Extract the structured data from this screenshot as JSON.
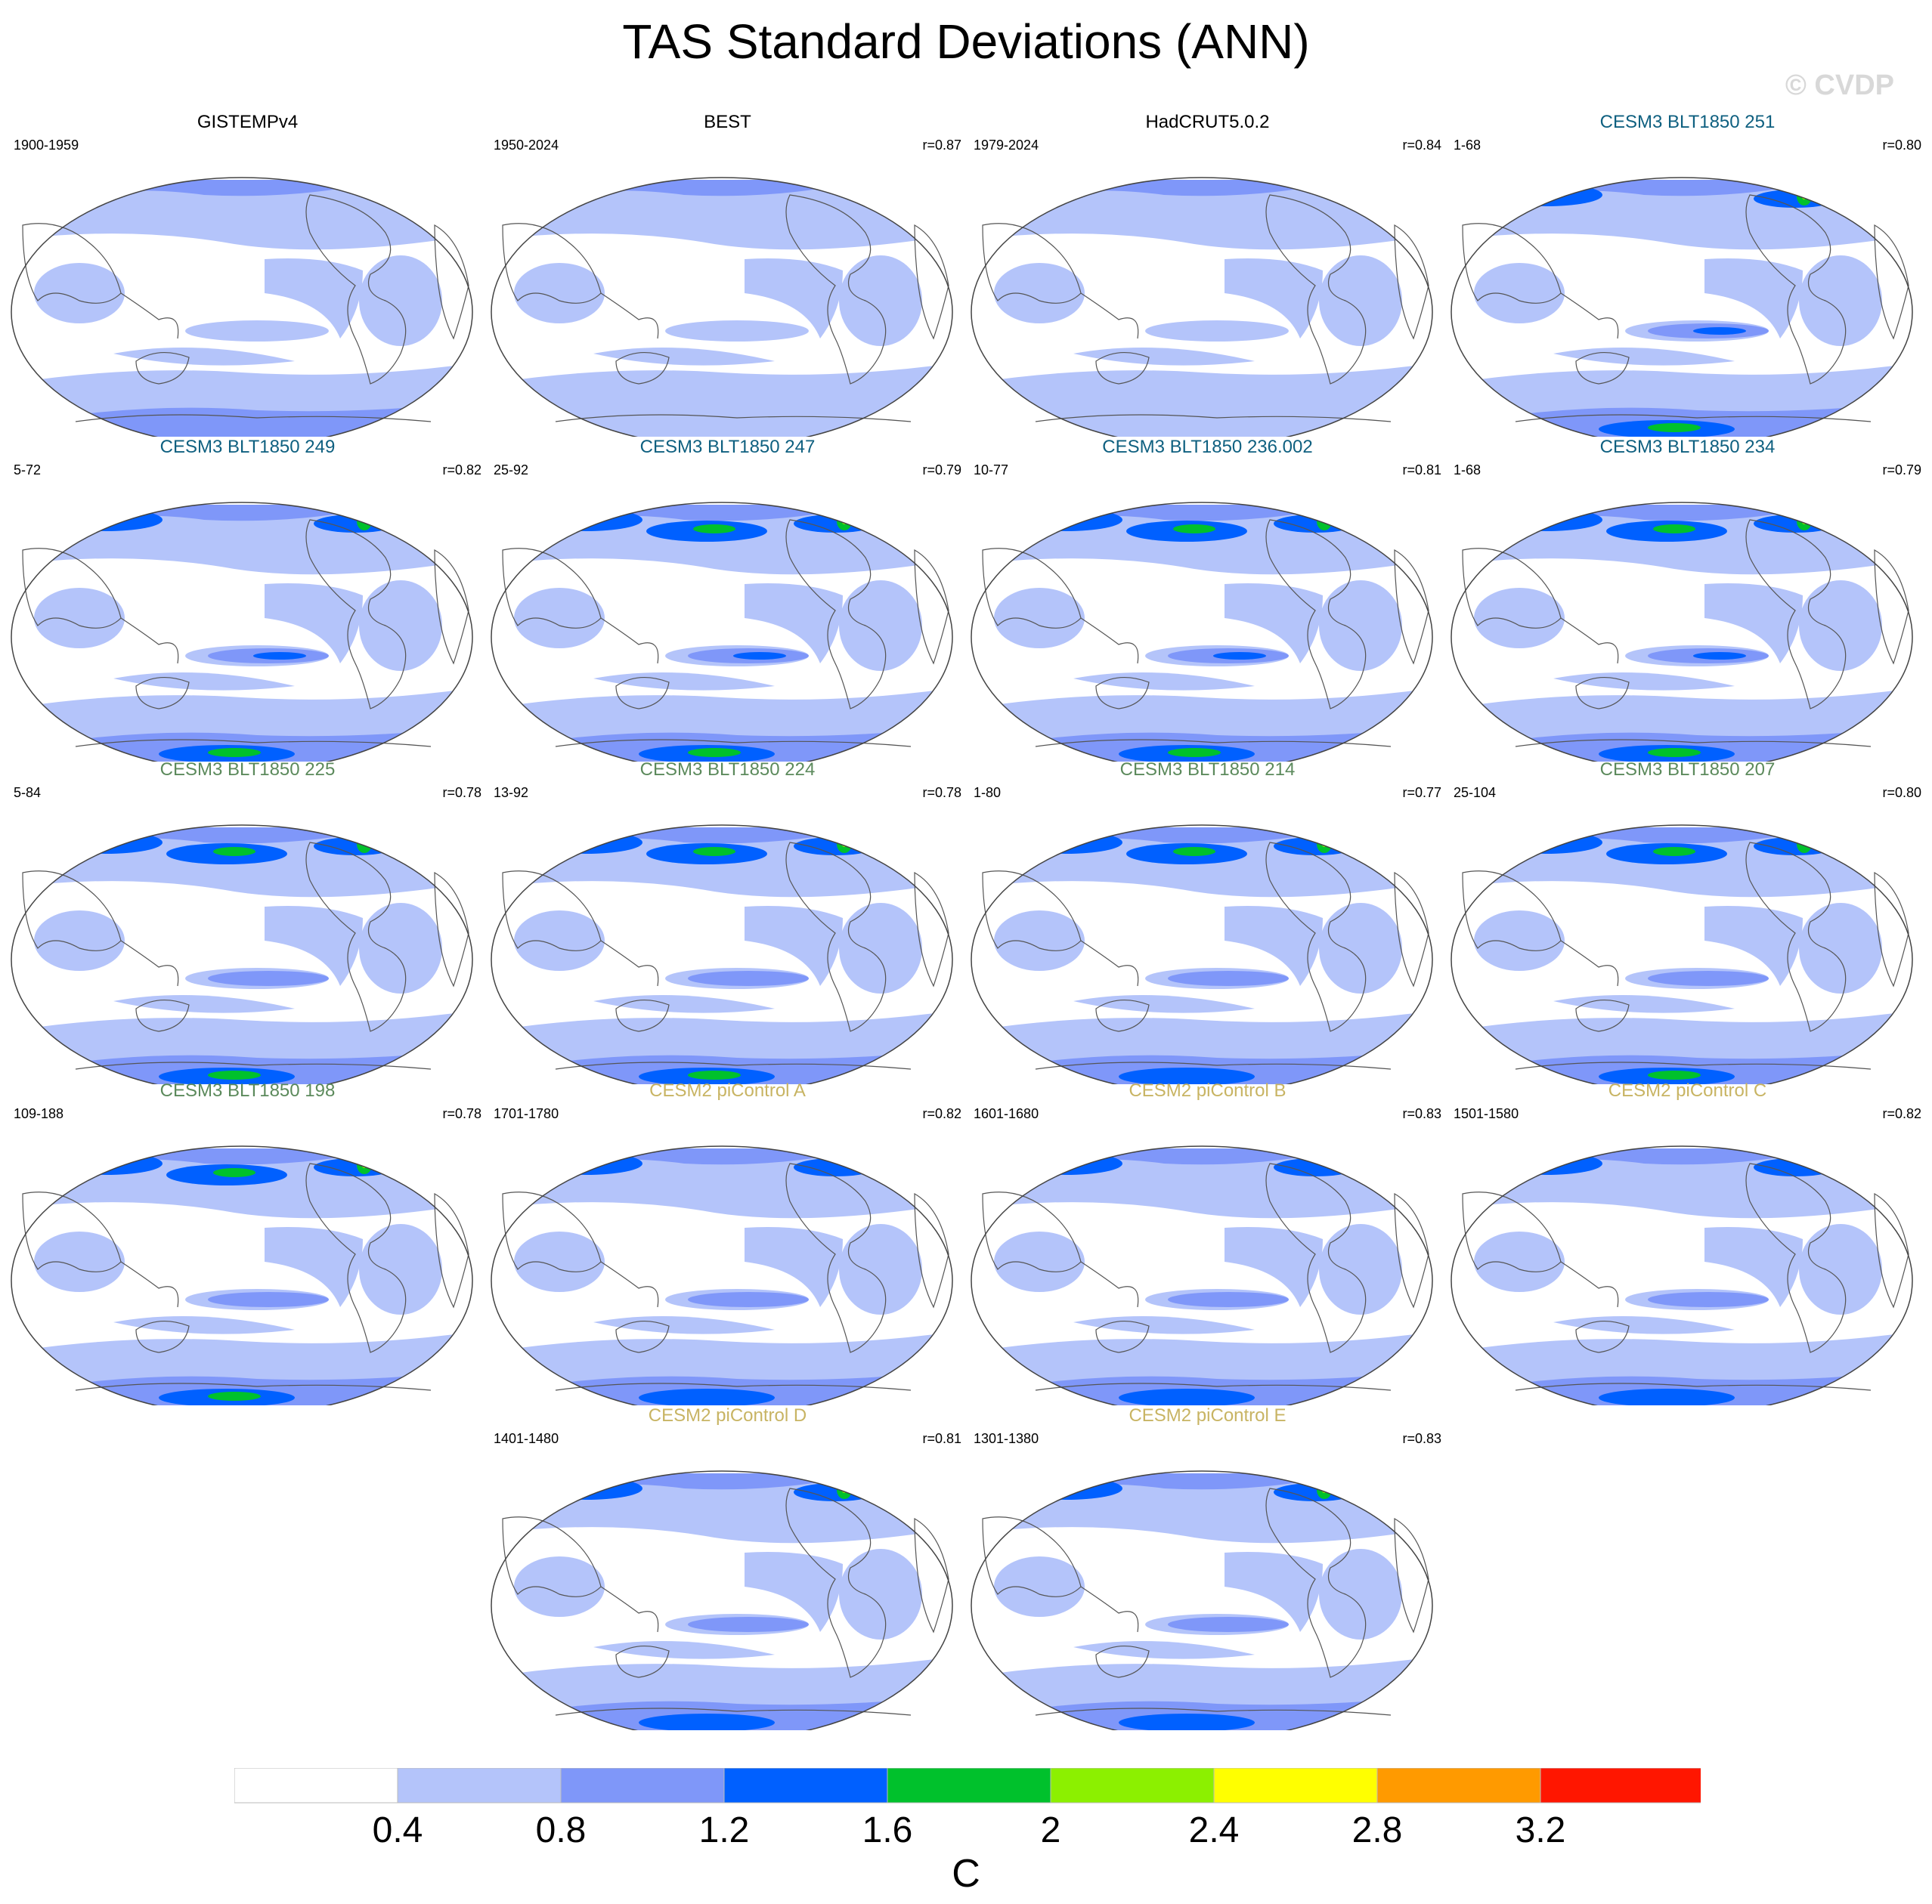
{
  "title": "TAS Standard Deviations (ANN)",
  "watermark": "© CVDP",
  "colors": {
    "levels": [
      "#ffffff",
      "#b4c4fa",
      "#7f97f9",
      "#0060ff",
      "#00c12c",
      "#8cf000",
      "#ffff00",
      "#ff9a00",
      "#ff1600"
    ],
    "obs_title": "#000000",
    "cesm3_a": "#0f6080",
    "cesm3_b": "#5c8a5c",
    "cesm2": "#c8b463"
  },
  "chart_data": {
    "type": "map-panels",
    "projection": "Robinson, Pacific-centered",
    "variable": "TAS",
    "statistic": "standard deviation",
    "season": "ANN",
    "colorbar": {
      "ticks": [
        "0.4",
        "0.8",
        "1.2",
        "1.6",
        "2",
        "2.4",
        "2.8",
        "3.2"
      ],
      "unit": "C",
      "bins": [
        {
          "min": 0.0,
          "max": 0.4
        },
        {
          "min": 0.4,
          "max": 0.8
        },
        {
          "min": 0.8,
          "max": 1.2
        },
        {
          "min": 1.2,
          "max": 1.6
        },
        {
          "min": 1.6,
          "max": 2.0
        },
        {
          "min": 2.0,
          "max": 2.4
        },
        {
          "min": 2.4,
          "max": 2.8
        },
        {
          "min": 2.8,
          "max": 3.2
        },
        {
          "min": 3.2,
          "max": 3.6
        }
      ]
    },
    "panels": [
      {
        "title": "GISTEMPv4",
        "years": "1900-1959",
        "r": "",
        "group": "obs",
        "arctic": 2,
        "antarctic": 2,
        "tropics": 1,
        "hot": 0
      },
      {
        "title": "BEST",
        "years": "1950-2024",
        "r": "r=0.87",
        "group": "obs",
        "arctic": 2,
        "antarctic": 1,
        "tropics": 1,
        "hot": 0
      },
      {
        "title": "HadCRUT5.0.2",
        "years": "1979-2024",
        "r": "r=0.84",
        "group": "obs",
        "arctic": 2,
        "antarctic": 1,
        "tropics": 1,
        "hot": 0
      },
      {
        "title": "CESM3 BLT1850 251",
        "years": "1-68",
        "r": "r=0.80",
        "group": "cesm3_a",
        "arctic": 3,
        "antarctic": 4,
        "tropics": 3,
        "hot": 6
      },
      {
        "title": "CESM3 BLT1850 249",
        "years": "5-72",
        "r": "r=0.82",
        "group": "cesm3_a",
        "arctic": 3,
        "antarctic": 4,
        "tropics": 3,
        "hot": 5
      },
      {
        "title": "CESM3 BLT1850 247",
        "years": "25-92",
        "r": "r=0.79",
        "group": "cesm3_a",
        "arctic": 4,
        "antarctic": 4,
        "tropics": 3,
        "hot": 6
      },
      {
        "title": "CESM3 BLT1850 236.002",
        "years": "10-77",
        "r": "r=0.81",
        "group": "cesm3_a",
        "arctic": 4,
        "antarctic": 4,
        "tropics": 3,
        "hot": 5
      },
      {
        "title": "CESM3 BLT1850 234",
        "years": "1-68",
        "r": "r=0.79",
        "group": "cesm3_a",
        "arctic": 4,
        "antarctic": 4,
        "tropics": 3,
        "hot": 6
      },
      {
        "title": "CESM3 BLT1850 225",
        "years": "5-84",
        "r": "r=0.78",
        "group": "cesm3_b",
        "arctic": 4,
        "antarctic": 4,
        "tropics": 2,
        "hot": 5
      },
      {
        "title": "CESM3 BLT1850 224",
        "years": "13-92",
        "r": "r=0.78",
        "group": "cesm3_b",
        "arctic": 4,
        "antarctic": 4,
        "tropics": 2,
        "hot": 6
      },
      {
        "title": "CESM3 BLT1850 214",
        "years": "1-80",
        "r": "r=0.77",
        "group": "cesm3_b",
        "arctic": 4,
        "antarctic": 3,
        "tropics": 2,
        "hot": 6
      },
      {
        "title": "CESM3 BLT1850 207",
        "years": "25-104",
        "r": "r=0.80",
        "group": "cesm3_b",
        "arctic": 4,
        "antarctic": 4,
        "tropics": 2,
        "hot": 5
      },
      {
        "title": "CESM3 BLT1850 198",
        "years": "109-188",
        "r": "r=0.78",
        "group": "cesm3_b",
        "arctic": 4,
        "antarctic": 4,
        "tropics": 2,
        "hot": 6
      },
      {
        "title": "CESM2 piControl A",
        "years": "1701-1780",
        "r": "r=0.82",
        "group": "cesm2",
        "arctic": 3,
        "antarctic": 3,
        "tropics": 2,
        "hot": 4
      },
      {
        "title": "CESM2 piControl B",
        "years": "1601-1680",
        "r": "r=0.83",
        "group": "cesm2",
        "arctic": 3,
        "antarctic": 3,
        "tropics": 2,
        "hot": 4
      },
      {
        "title": "CESM2 piControl C",
        "years": "1501-1580",
        "r": "r=0.82",
        "group": "cesm2",
        "arctic": 3,
        "antarctic": 3,
        "tropics": 2,
        "hot": 4
      },
      {
        "title": "CESM2 piControl D",
        "years": "1401-1480",
        "r": "r=0.81",
        "group": "cesm2",
        "arctic": 3,
        "antarctic": 3,
        "tropics": 2,
        "hot": 6
      },
      {
        "title": "CESM2 piControl E",
        "years": "1301-1380",
        "r": "r=0.83",
        "group": "cesm2",
        "arctic": 3,
        "antarctic": 3,
        "tropics": 2,
        "hot": 6
      }
    ]
  }
}
